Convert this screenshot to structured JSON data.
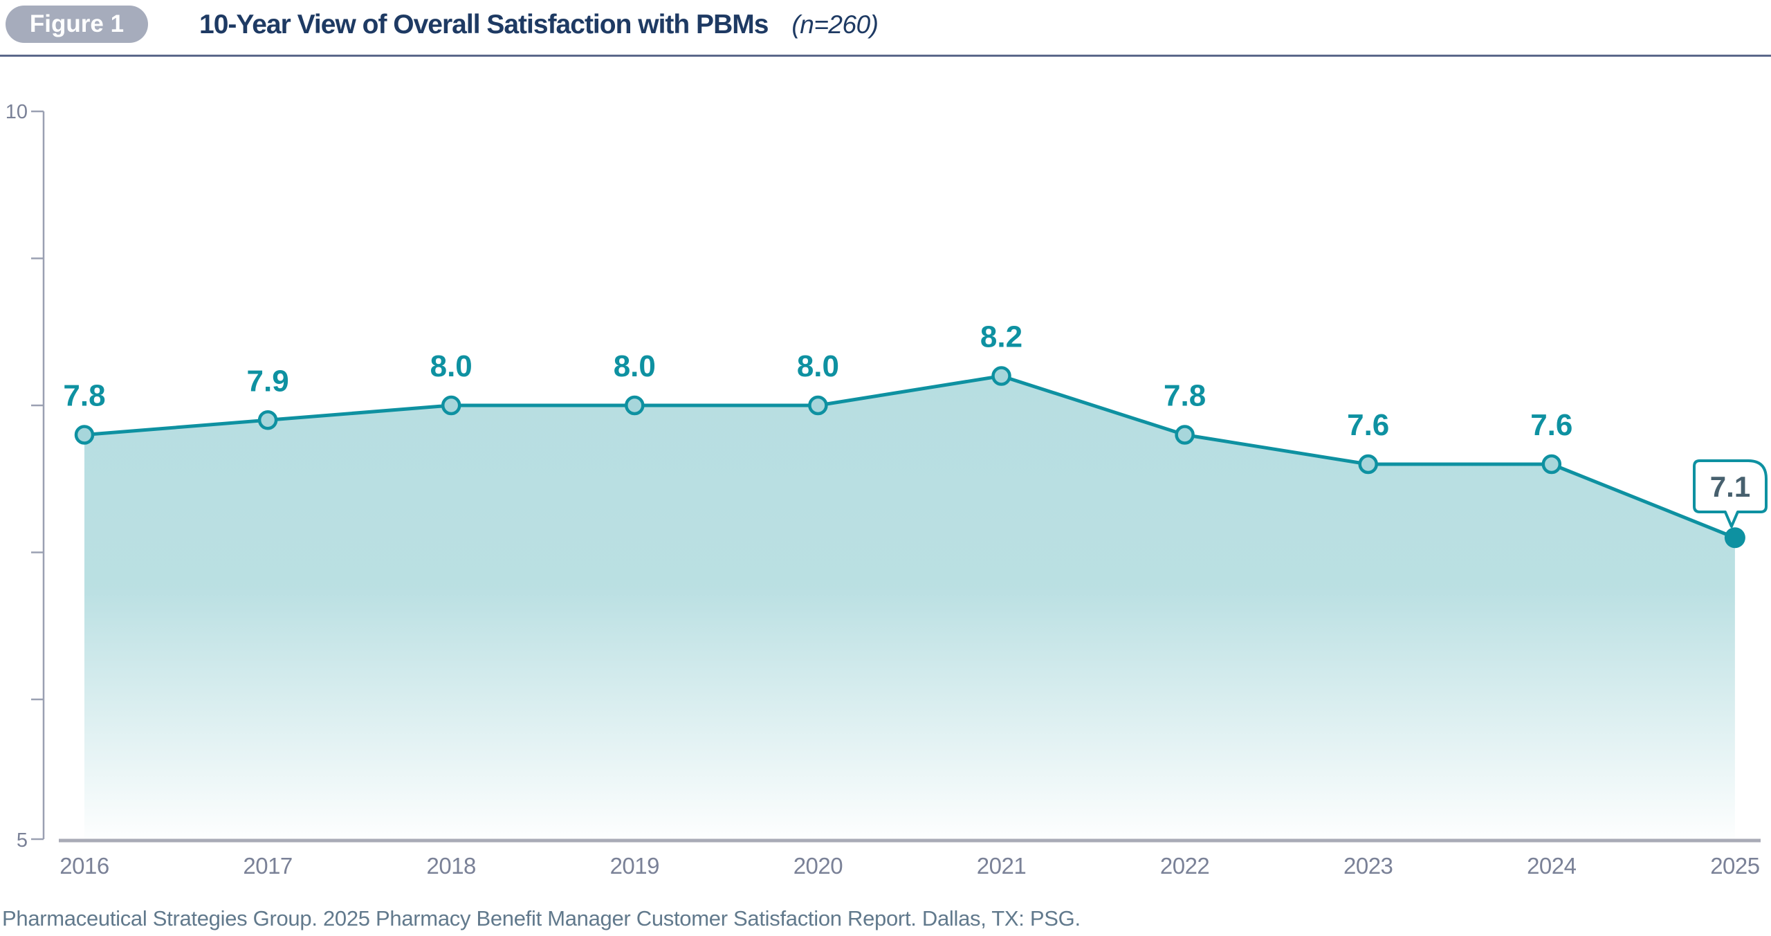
{
  "header": {
    "figure_label": "Figure 1",
    "title": "10-Year View of Overall Satisfaction with PBMs",
    "n_note": "(n=260)"
  },
  "chart_data": {
    "type": "area",
    "title": "10-Year View of Overall Satisfaction with PBMs",
    "sample_size_note": "(n=260)",
    "categories": [
      "2016",
      "2017",
      "2018",
      "2019",
      "2020",
      "2021",
      "2022",
      "2023",
      "2024",
      "2025"
    ],
    "values": [
      7.8,
      7.9,
      8.0,
      8.0,
      8.0,
      8.2,
      7.8,
      7.6,
      7.6,
      7.1
    ],
    "labels": [
      "7.8",
      "7.9",
      "8.0",
      "8.0",
      "8.0",
      "8.2",
      "7.8",
      "7.6",
      "7.6",
      "7.1"
    ],
    "ylim": [
      5,
      10
    ],
    "yticks": [
      10,
      9,
      8,
      7,
      6,
      5
    ],
    "y_axis_top_label": "10",
    "y_axis_bottom_label": "5",
    "callout_index": 9,
    "grid": false,
    "legend": false,
    "xlabel": "",
    "ylabel": ""
  },
  "footer": {
    "source": "Pharmaceutical Strategies Group. 2025 Pharmacy Benefit Manager Customer Satisfaction Report. Dallas, TX: PSG."
  },
  "colors": {
    "teal": "#0E91A1",
    "marker_fill": "#A7D6DB",
    "area_fill": "#B7DEE1",
    "title_navy": "#1E3A63",
    "pill_bg": "#A6ACBC",
    "pill_text": "#FFFFFF",
    "axis_label": "#7A8197",
    "axis_line": "#9AA0B2",
    "baseline": "#A9ABB6",
    "source_text": "#61798C",
    "callout_text": "#47606E",
    "callout_bg": "#FFFFFF",
    "header_rule": "#5B688A"
  }
}
